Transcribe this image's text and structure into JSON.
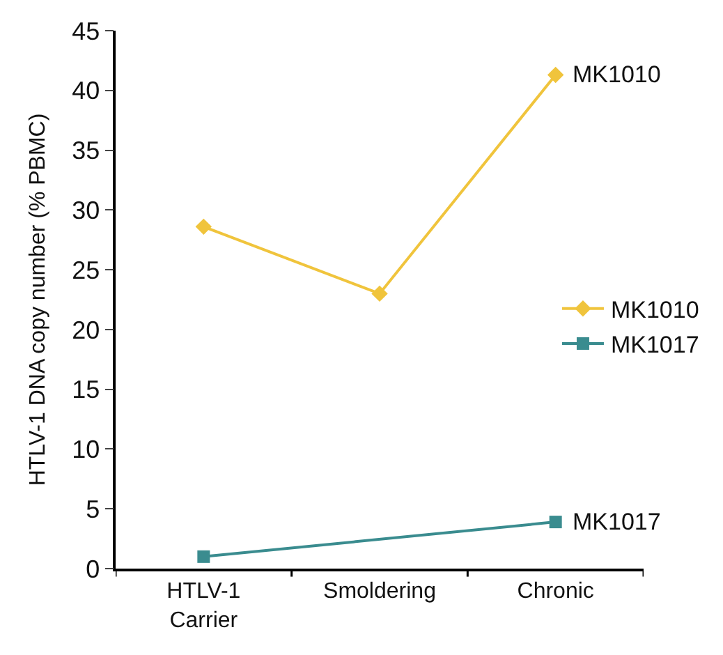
{
  "chart_data": {
    "type": "line",
    "ylabel": "HTLV-1 DNA copy number (% PBMC)",
    "categories": [
      "HTLV-1\nCarrier",
      "Smoldering",
      "Chronic"
    ],
    "series": [
      {
        "name": "MK1010",
        "color": "#f0c43c",
        "values": [
          28.6,
          23.0,
          41.3
        ],
        "marker": "diamond"
      },
      {
        "name": "MK1017",
        "color": "#3a8c8f",
        "values": [
          1.0,
          null,
          3.9
        ],
        "marker": "square"
      }
    ],
    "annotations": [
      {
        "text": "MK1010",
        "x": "Chronic",
        "y": 41.3
      },
      {
        "text": "MK1017",
        "x": "Chronic",
        "y": 3.9
      }
    ],
    "ylim": [
      0,
      45
    ],
    "yticks": [
      0,
      5,
      10,
      15,
      20,
      25,
      30,
      35,
      40,
      45
    ],
    "grid": false,
    "legend": "right",
    "line_style": "solid"
  }
}
